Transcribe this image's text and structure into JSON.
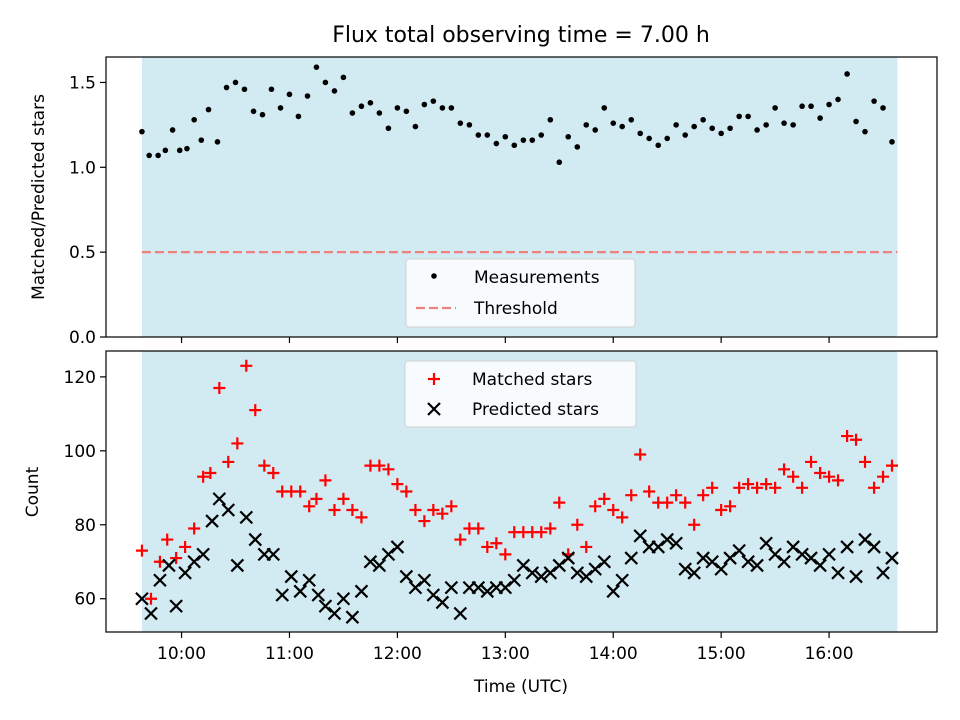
{
  "title": "Flux total observing time = 7.00 h",
  "chart_data": [
    {
      "type": "scatter",
      "ylabel": "Matched/Predicted stars",
      "xlim": [
        9.3,
        17.0
      ],
      "ylim": [
        0,
        1.65
      ],
      "yticks": [
        0.0,
        0.5,
        1.0,
        1.5
      ],
      "ytick_labels": [
        "0.0",
        "0.5",
        "1.0",
        "1.5"
      ],
      "shaded_span": [
        9.633,
        16.633
      ],
      "colors": {
        "shade": "#add8e6",
        "threshold": "#f08080",
        "points": "#000000"
      },
      "threshold": 0.5,
      "legend": {
        "measurements": "Measurements",
        "threshold": "Threshold"
      },
      "series": [
        {
          "name": "Measurements",
          "x": [
            9.633,
            9.7,
            9.783,
            9.85,
            9.917,
            9.983,
            10.05,
            10.117,
            10.183,
            10.25,
            10.333,
            10.417,
            10.5,
            10.583,
            10.667,
            10.75,
            10.833,
            10.917,
            11.0,
            11.083,
            11.167,
            11.25,
            11.333,
            11.417,
            11.5,
            11.583,
            11.667,
            11.75,
            11.833,
            11.917,
            12.0,
            12.083,
            12.167,
            12.25,
            12.333,
            12.417,
            12.5,
            12.583,
            12.667,
            12.75,
            12.833,
            12.917,
            13.0,
            13.083,
            13.167,
            13.25,
            13.333,
            13.417,
            13.5,
            13.583,
            13.667,
            13.75,
            13.833,
            13.917,
            14.0,
            14.083,
            14.167,
            14.25,
            14.333,
            14.417,
            14.5,
            14.583,
            14.667,
            14.75,
            14.833,
            14.917,
            15.0,
            15.083,
            15.167,
            15.25,
            15.333,
            15.417,
            15.5,
            15.583,
            15.667,
            15.75,
            15.833,
            15.917,
            16.0,
            16.083,
            16.167,
            16.25,
            16.333,
            16.417,
            16.5,
            16.583
          ],
          "y": [
            1.21,
            1.07,
            1.07,
            1.1,
            1.22,
            1.1,
            1.11,
            1.28,
            1.16,
            1.34,
            1.15,
            1.47,
            1.5,
            1.46,
            1.33,
            1.31,
            1.46,
            1.35,
            1.43,
            1.3,
            1.42,
            1.59,
            1.5,
            1.45,
            1.53,
            1.32,
            1.36,
            1.38,
            1.32,
            1.23,
            1.35,
            1.33,
            1.24,
            1.37,
            1.39,
            1.35,
            1.35,
            1.26,
            1.25,
            1.19,
            1.19,
            1.14,
            1.18,
            1.13,
            1.16,
            1.16,
            1.19,
            1.28,
            1.03,
            1.18,
            1.12,
            1.25,
            1.22,
            1.35,
            1.26,
            1.24,
            1.28,
            1.2,
            1.17,
            1.13,
            1.17,
            1.25,
            1.19,
            1.24,
            1.28,
            1.23,
            1.2,
            1.23,
            1.3,
            1.3,
            1.22,
            1.25,
            1.35,
            1.26,
            1.25,
            1.36,
            1.36,
            1.29,
            1.37,
            1.4,
            1.55,
            1.27,
            1.21,
            1.39,
            1.35,
            1.15
          ]
        }
      ]
    },
    {
      "type": "scatter",
      "ylabel": "Count",
      "xlabel": "Time (UTC)",
      "xlim": [
        9.3,
        17.0
      ],
      "ylim": [
        51,
        127
      ],
      "yticks": [
        60,
        80,
        100,
        120
      ],
      "ytick_labels": [
        "60",
        "80",
        "100",
        "120"
      ],
      "xticks": [
        10,
        11,
        12,
        13,
        14,
        15,
        16
      ],
      "xtick_labels": [
        "10:00",
        "11:00",
        "12:00",
        "13:00",
        "14:00",
        "15:00",
        "16:00"
      ],
      "shaded_span": [
        9.633,
        16.633
      ],
      "colors": {
        "shade": "#add8e6",
        "matched": "#ff0000",
        "predicted": "#000000"
      },
      "legend": {
        "matched": "Matched stars",
        "predicted": "Predicted stars"
      },
      "series": [
        {
          "name": "Matched stars",
          "x": [
            9.633,
            9.717,
            9.8,
            9.867,
            9.95,
            10.033,
            10.117,
            10.2,
            10.267,
            10.35,
            10.433,
            10.517,
            10.6,
            10.683,
            10.767,
            10.85,
            10.933,
            11.017,
            11.1,
            11.183,
            11.25,
            11.333,
            11.417,
            11.5,
            11.583,
            11.667,
            11.75,
            11.833,
            11.917,
            12.0,
            12.083,
            12.167,
            12.25,
            12.333,
            12.417,
            12.5,
            12.583,
            12.667,
            12.75,
            12.833,
            12.917,
            13.0,
            13.083,
            13.167,
            13.25,
            13.333,
            13.417,
            13.5,
            13.583,
            13.667,
            13.75,
            13.833,
            13.917,
            14.0,
            14.083,
            14.167,
            14.25,
            14.333,
            14.417,
            14.5,
            14.583,
            14.667,
            14.75,
            14.833,
            14.917,
            15.0,
            15.083,
            15.167,
            15.25,
            15.333,
            15.417,
            15.5,
            15.583,
            15.667,
            15.75,
            15.833,
            15.917,
            16.0,
            16.083,
            16.167,
            16.25,
            16.333,
            16.417,
            16.5,
            16.583
          ],
          "y": [
            73,
            60,
            70,
            76,
            71,
            74,
            79,
            93,
            94,
            117,
            97,
            102,
            123,
            111,
            96,
            94,
            89,
            89,
            89,
            85,
            87,
            92,
            84,
            87,
            84,
            82,
            96,
            96,
            95,
            91,
            89,
            84,
            81,
            84,
            83,
            85,
            76,
            79,
            79,
            74,
            75,
            72,
            78,
            78,
            78,
            78,
            79,
            86,
            72,
            80,
            74,
            85,
            87,
            84,
            82,
            88,
            99,
            89,
            86,
            86,
            88,
            86,
            80,
            88,
            90,
            84,
            85,
            90,
            91,
            90,
            91,
            90,
            95,
            93,
            90,
            97,
            94,
            93,
            92,
            104,
            103,
            97,
            90,
            93,
            96
          ]
        },
        {
          "name": "Predicted stars",
          "x": [
            9.633,
            9.717,
            9.8,
            9.883,
            9.95,
            10.033,
            10.117,
            10.2,
            10.283,
            10.35,
            10.433,
            10.517,
            10.6,
            10.683,
            10.767,
            10.85,
            10.933,
            11.017,
            11.1,
            11.183,
            11.267,
            11.333,
            11.417,
            11.5,
            11.583,
            11.667,
            11.75,
            11.833,
            11.917,
            12.0,
            12.083,
            12.167,
            12.25,
            12.333,
            12.417,
            12.5,
            12.583,
            12.667,
            12.75,
            12.833,
            12.917,
            13.0,
            13.083,
            13.167,
            13.25,
            13.333,
            13.417,
            13.5,
            13.583,
            13.667,
            13.75,
            13.833,
            13.917,
            14.0,
            14.083,
            14.167,
            14.25,
            14.333,
            14.417,
            14.5,
            14.583,
            14.667,
            14.75,
            14.833,
            14.917,
            15.0,
            15.083,
            15.167,
            15.25,
            15.333,
            15.417,
            15.5,
            15.583,
            15.667,
            15.75,
            15.833,
            15.917,
            16.0,
            16.083,
            16.167,
            16.25,
            16.333,
            16.417,
            16.5,
            16.583
          ],
          "y": [
            60,
            56,
            65,
            69,
            58,
            67,
            70,
            72,
            81,
            87,
            84,
            69,
            82,
            76,
            72,
            72,
            61,
            66,
            62,
            65,
            61,
            58,
            56,
            60,
            55,
            62,
            70,
            69,
            72,
            74,
            66,
            63,
            65,
            61,
            59,
            63,
            56,
            63,
            63,
            62,
            63,
            63,
            65,
            69,
            67,
            66,
            67,
            69,
            71,
            67,
            66,
            68,
            70,
            62,
            65,
            71,
            77,
            74,
            74,
            76,
            75,
            68,
            67,
            71,
            70,
            68,
            71,
            73,
            70,
            69,
            75,
            72,
            70,
            74,
            72,
            71,
            69,
            72,
            67,
            74,
            66,
            76,
            74,
            67,
            71
          ]
        }
      ]
    }
  ]
}
